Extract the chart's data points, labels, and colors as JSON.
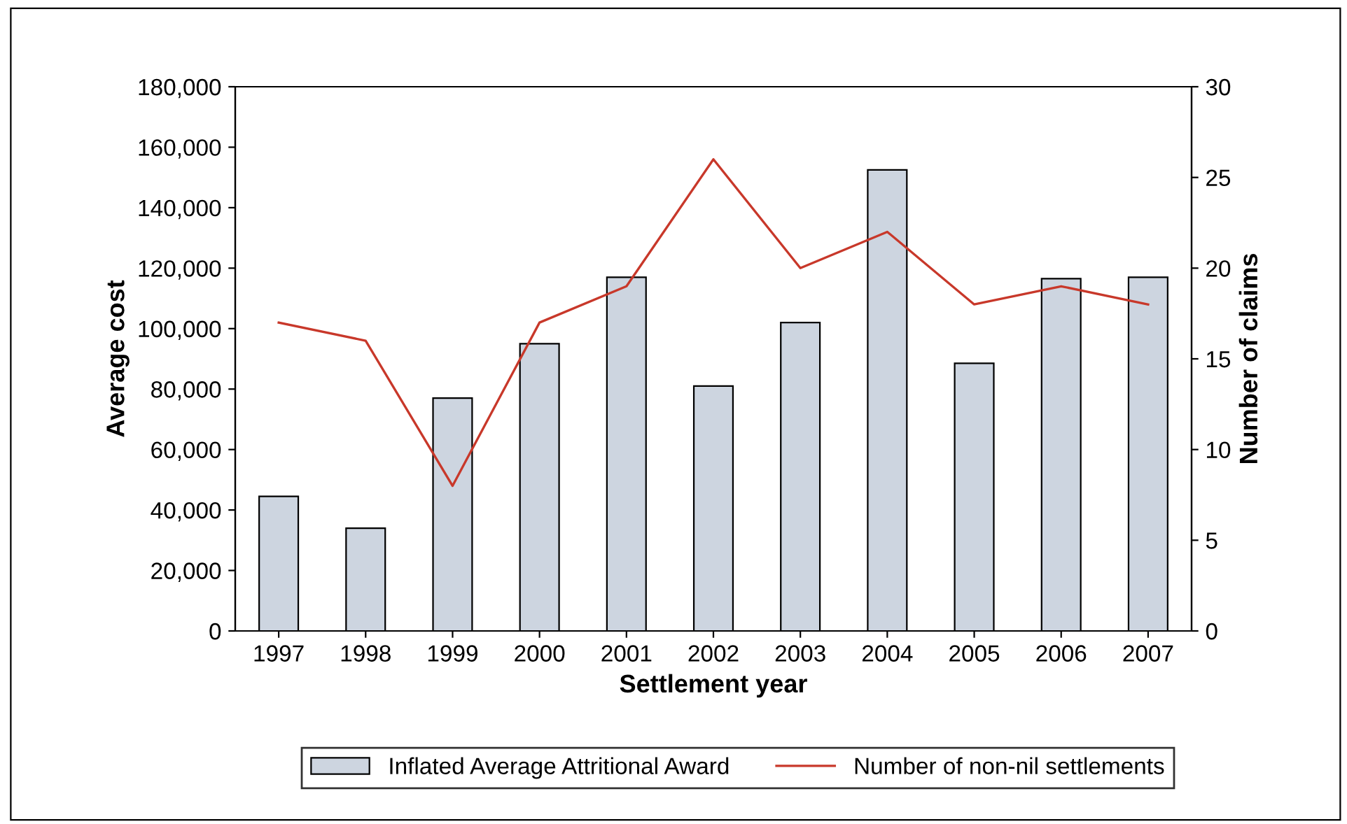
{
  "chart_data": {
    "type": "bar",
    "xlabel": "Settlement year",
    "ylabel": "Average cost",
    "y2label": "Number of claims",
    "categories": [
      "1997",
      "1998",
      "1999",
      "2000",
      "2001",
      "2002",
      "2003",
      "2004",
      "2005",
      "2006",
      "2007"
    ],
    "series": [
      {
        "name": "Inflated Average Attritional Award",
        "color": "#cdd5e0",
        "values": [
          44500,
          34000,
          77000,
          95000,
          117000,
          81000,
          102000,
          152500,
          88500,
          116500,
          117000
        ]
      },
      {
        "name": "Number of non-nil settlements",
        "type": "line",
        "axis": "y2",
        "color": "#c8382a",
        "values": [
          17,
          16,
          8,
          17,
          19,
          26,
          20,
          22,
          18,
          19,
          18
        ]
      }
    ],
    "ylim": [
      0,
      180000
    ],
    "yticks": [
      0,
      {
        "value": 20000,
        "label": "20,000"
      },
      {
        "value": 40000,
        "label": "40,000"
      },
      {
        "value": 60000,
        "label": "60,000"
      },
      {
        "value": 80000,
        "label": "80,000"
      },
      {
        "value": 100000,
        "label": "100,000"
      },
      {
        "value": 120000,
        "label": "120,000"
      },
      {
        "value": 140000,
        "label": "140,000"
      },
      {
        "value": 160000,
        "label": "160,000"
      },
      {
        "value": 180000,
        "label": "180,000"
      }
    ],
    "y2lim": [
      0,
      30
    ],
    "y2ticks": [
      0,
      5,
      10,
      15,
      20,
      25,
      30
    ],
    "grid": false,
    "legend": "bottom",
    "marker": "none",
    "line_style": "solid"
  }
}
